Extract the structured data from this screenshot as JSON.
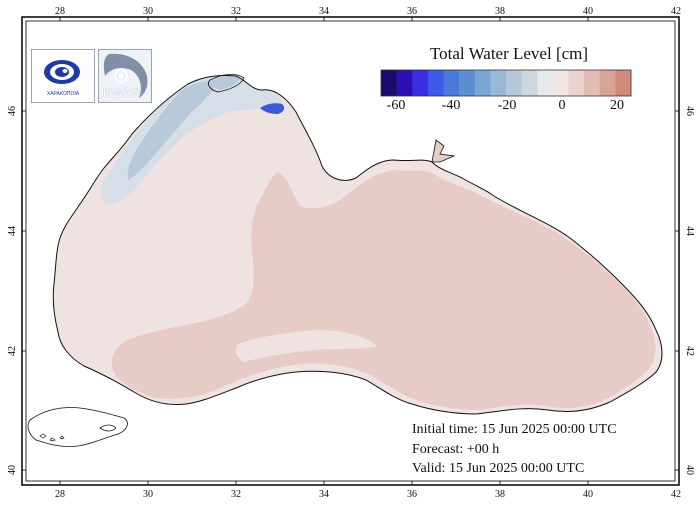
{
  "legend": {
    "title": "Total Water Level [cm]",
    "ticks": [
      "-60",
      "-40",
      "-20",
      "0",
      "20"
    ],
    "colors": [
      "#1a0a6e",
      "#2a10b0",
      "#3b2ee0",
      "#3c5ae8",
      "#4a7ad8",
      "#5c8fcf",
      "#7aa6d2",
      "#98b9d6",
      "#b5c9da",
      "#cdd7e0",
      "#e6e9ec",
      "#f2e6e4",
      "#ebd3cf",
      "#e2bdb5",
      "#d9a498",
      "#cf8a7a"
    ]
  },
  "info": {
    "initial": "Initial time: 15 Jun 2025 00:00 UTC",
    "forecast": "Forecast: +00 h",
    "valid": "Valid: 15 Jun 2025 00:00 UTC"
  },
  "axes": {
    "lon_labels": [
      "28",
      "30",
      "32",
      "34",
      "36",
      "38",
      "40",
      "42"
    ],
    "lat_labels": [
      "46",
      "44",
      "42",
      "40"
    ]
  },
  "logos": {
    "left_text": "ΧΑΡΑΚΟΠΟΙΑ",
    "right_text": "KWAR"
  },
  "colors": {
    "sea_pink": "#e7cdc9",
    "sea_light": "#efe3e1",
    "nw_shelf": "#d3dde6",
    "coast_blue": "#b8c8d8",
    "deep_blue": "#3a58d8"
  }
}
